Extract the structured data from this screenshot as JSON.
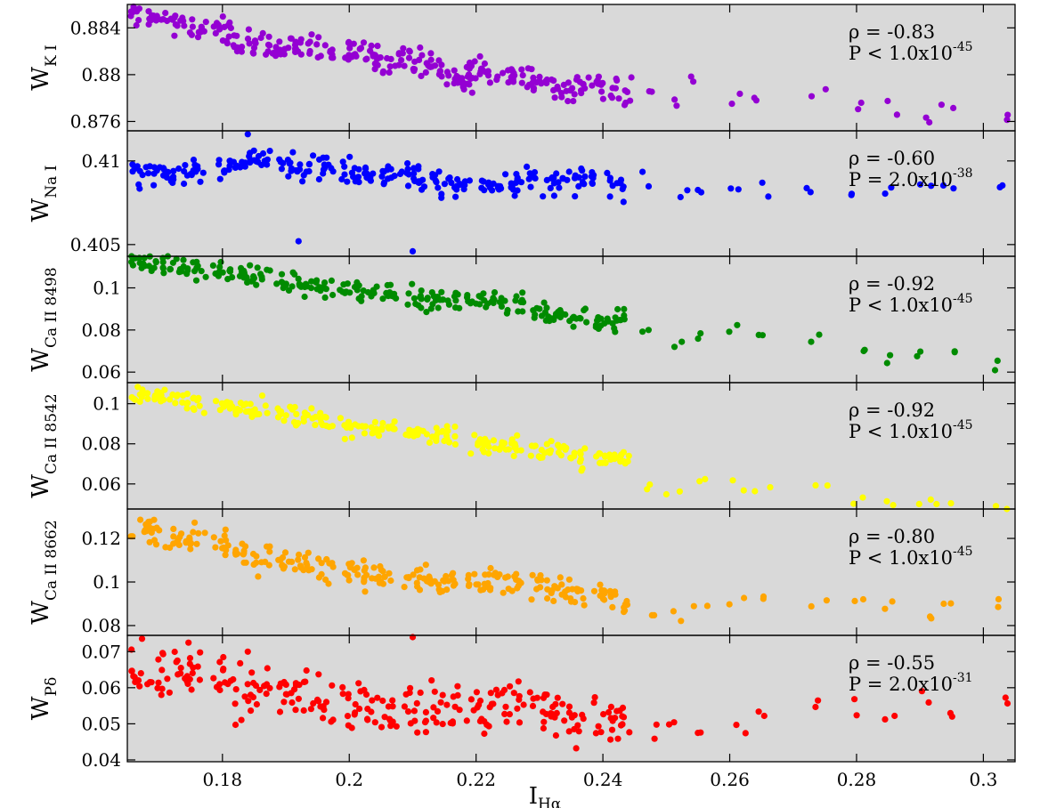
{
  "chart_data": {
    "type": "scatter",
    "xlabel": {
      "main": "I",
      "sub": "Hα"
    },
    "xlim": [
      0.165,
      0.305
    ],
    "xticks": [
      0.18,
      0.2,
      0.22,
      0.24,
      0.26,
      0.28,
      0.3
    ],
    "xtick_labels": [
      "0.18",
      "0.2",
      "0.22",
      "0.24",
      "0.26",
      "0.28",
      "0.3"
    ],
    "grid": false,
    "panels": [
      {
        "ylabel": {
          "main": "W",
          "sub": "K I"
        },
        "color": "#9400d3",
        "ylim": [
          0.8752,
          0.886
        ],
        "yticks": [
          0.876,
          0.88,
          0.884
        ],
        "ytick_labels": [
          "0.876",
          "0.88",
          "0.884"
        ],
        "rho": "ρ = -0.83",
        "p_main": "P < 1.0x10",
        "p_exp": "-45",
        "anchors": [
          [
            0.167,
            0.8849
          ],
          [
            0.17,
            0.8845
          ],
          [
            0.173,
            0.8845
          ],
          [
            0.176,
            0.8841
          ],
          [
            0.18,
            0.884
          ],
          [
            0.182,
            0.8827
          ],
          [
            0.185,
            0.8826
          ],
          [
            0.188,
            0.8823
          ],
          [
            0.19,
            0.8822
          ],
          [
            0.193,
            0.8821
          ],
          [
            0.196,
            0.8819
          ],
          [
            0.2,
            0.882
          ],
          [
            0.203,
            0.8818
          ],
          [
            0.205,
            0.881
          ],
          [
            0.208,
            0.8812
          ],
          [
            0.211,
            0.8812
          ],
          [
            0.213,
            0.8808
          ],
          [
            0.216,
            0.8803
          ],
          [
            0.218,
            0.8795
          ],
          [
            0.22,
            0.8803
          ],
          [
            0.222,
            0.8802
          ],
          [
            0.225,
            0.88
          ],
          [
            0.228,
            0.8797
          ],
          [
            0.231,
            0.8793
          ],
          [
            0.234,
            0.8788
          ],
          [
            0.237,
            0.879
          ],
          [
            0.24,
            0.8788
          ],
          [
            0.243,
            0.8785
          ],
          [
            0.247,
            0.8785
          ],
          [
            0.251,
            0.8778
          ],
          [
            0.255,
            0.8794
          ],
          [
            0.261,
            0.8782
          ],
          [
            0.265,
            0.8778
          ],
          [
            0.274,
            0.8784
          ],
          [
            0.28,
            0.877
          ],
          [
            0.285,
            0.8768
          ],
          [
            0.291,
            0.8763
          ],
          [
            0.294,
            0.8773
          ],
          [
            0.303,
            0.8765
          ]
        ],
        "spread": 0.0006,
        "outliers": [],
        "points": []
      },
      {
        "ylabel": {
          "main": "W",
          "sub": "Na I"
        },
        "color": "#0000ff",
        "ylim": [
          0.4043,
          0.4118
        ],
        "yticks": [
          0.405,
          0.41
        ],
        "ytick_labels": [
          "0.405",
          "0.41"
        ],
        "rho": "ρ = -0.60",
        "p_main": "P = 2.0x10",
        "p_exp": "-38",
        "anchors": [
          [
            0.167,
            0.4093
          ],
          [
            0.17,
            0.4096
          ],
          [
            0.173,
            0.4093
          ],
          [
            0.176,
            0.4095
          ],
          [
            0.18,
            0.4094
          ],
          [
            0.183,
            0.41
          ],
          [
            0.186,
            0.4101
          ],
          [
            0.19,
            0.4098
          ],
          [
            0.193,
            0.4097
          ],
          [
            0.196,
            0.4096
          ],
          [
            0.2,
            0.4093
          ],
          [
            0.203,
            0.4091
          ],
          [
            0.206,
            0.4092
          ],
          [
            0.209,
            0.4091
          ],
          [
            0.212,
            0.4089
          ],
          [
            0.215,
            0.4087
          ],
          [
            0.218,
            0.4085
          ],
          [
            0.222,
            0.4087
          ],
          [
            0.225,
            0.4088
          ],
          [
            0.228,
            0.4089
          ],
          [
            0.232,
            0.4087
          ],
          [
            0.235,
            0.4089
          ],
          [
            0.238,
            0.4089
          ],
          [
            0.242,
            0.4086
          ],
          [
            0.246,
            0.4088
          ],
          [
            0.252,
            0.4083
          ],
          [
            0.256,
            0.4082
          ],
          [
            0.26,
            0.4083
          ],
          [
            0.265,
            0.4083
          ],
          [
            0.273,
            0.4084
          ],
          [
            0.28,
            0.4081
          ],
          [
            0.285,
            0.4083
          ],
          [
            0.291,
            0.4086
          ],
          [
            0.294,
            0.4085
          ],
          [
            0.303,
            0.4086
          ]
        ],
        "spread": 0.0004,
        "outliers": [
          [
            0.184,
            0.4116
          ],
          [
            0.192,
            0.4052
          ],
          [
            0.21,
            0.4046
          ]
        ],
        "points": []
      },
      {
        "ylabel": {
          "main": "W",
          "sub": "Ca II 8498"
        },
        "color": "#008b00",
        "ylim": [
          0.055,
          0.115
        ],
        "yticks": [
          0.06,
          0.08,
          0.1
        ],
        "ytick_labels": [
          "0.06",
          "0.08",
          "0.1"
        ],
        "rho": "ρ = -0.92",
        "p_main": "P < 1.0x10",
        "p_exp": "-45",
        "anchors": [
          [
            0.167,
            0.112
          ],
          [
            0.17,
            0.111
          ],
          [
            0.173,
            0.11
          ],
          [
            0.176,
            0.11
          ],
          [
            0.18,
            0.108
          ],
          [
            0.183,
            0.106
          ],
          [
            0.186,
            0.105
          ],
          [
            0.19,
            0.103
          ],
          [
            0.193,
            0.101
          ],
          [
            0.196,
            0.1
          ],
          [
            0.2,
            0.099
          ],
          [
            0.203,
            0.098
          ],
          [
            0.206,
            0.097
          ],
          [
            0.21,
            0.095
          ],
          [
            0.213,
            0.095
          ],
          [
            0.216,
            0.094
          ],
          [
            0.22,
            0.094
          ],
          [
            0.223,
            0.093
          ],
          [
            0.226,
            0.092
          ],
          [
            0.23,
            0.089
          ],
          [
            0.233,
            0.088
          ],
          [
            0.236,
            0.085
          ],
          [
            0.24,
            0.084
          ],
          [
            0.243,
            0.084
          ],
          [
            0.247,
            0.08
          ],
          [
            0.251,
            0.074
          ],
          [
            0.255,
            0.077
          ],
          [
            0.261,
            0.079
          ],
          [
            0.265,
            0.079
          ],
          [
            0.274,
            0.076
          ],
          [
            0.28,
            0.068
          ],
          [
            0.285,
            0.066
          ],
          [
            0.291,
            0.069
          ],
          [
            0.294,
            0.069
          ],
          [
            0.303,
            0.063
          ]
        ],
        "spread": 0.0025,
        "outliers": [],
        "points": []
      },
      {
        "ylabel": {
          "main": "W",
          "sub": "Ca II 8542"
        },
        "color": "#ffff00",
        "ylim": [
          0.0475,
          0.1105
        ],
        "yticks": [
          0.06,
          0.08,
          0.1
        ],
        "ytick_labels": [
          "0.06",
          "0.08",
          "0.1"
        ],
        "rho": "ρ = -0.92",
        "p_main": "P < 1.0x10",
        "p_exp": "-45",
        "anchors": [
          [
            0.167,
            0.104
          ],
          [
            0.17,
            0.103
          ],
          [
            0.173,
            0.102
          ],
          [
            0.176,
            0.101
          ],
          [
            0.18,
            0.1
          ],
          [
            0.183,
            0.098
          ],
          [
            0.186,
            0.097
          ],
          [
            0.19,
            0.095
          ],
          [
            0.193,
            0.093
          ],
          [
            0.196,
            0.091
          ],
          [
            0.2,
            0.089
          ],
          [
            0.203,
            0.088
          ],
          [
            0.206,
            0.087
          ],
          [
            0.21,
            0.085
          ],
          [
            0.213,
            0.084
          ],
          [
            0.216,
            0.083
          ],
          [
            0.22,
            0.081
          ],
          [
            0.223,
            0.08
          ],
          [
            0.226,
            0.079
          ],
          [
            0.23,
            0.077
          ],
          [
            0.233,
            0.076
          ],
          [
            0.236,
            0.073
          ],
          [
            0.24,
            0.073
          ],
          [
            0.243,
            0.072
          ],
          [
            0.247,
            0.06
          ],
          [
            0.251,
            0.056
          ],
          [
            0.255,
            0.062
          ],
          [
            0.261,
            0.061
          ],
          [
            0.265,
            0.06
          ],
          [
            0.274,
            0.06
          ],
          [
            0.28,
            0.051
          ],
          [
            0.285,
            0.05
          ],
          [
            0.291,
            0.05
          ],
          [
            0.294,
            0.051
          ],
          [
            0.303,
            0.049
          ]
        ],
        "spread": 0.0025,
        "outliers": [],
        "points": []
      },
      {
        "ylabel": {
          "main": "W",
          "sub": "Ca II 8662"
        },
        "color": "#ffa500",
        "ylim": [
          0.0755,
          0.1335
        ],
        "yticks": [
          0.08,
          0.1,
          0.12
        ],
        "ytick_labels": [
          "0.08",
          "0.1",
          "0.12"
        ],
        "rho": "ρ = -0.80",
        "p_main": "P < 1.0x10",
        "p_exp": "-45",
        "anchors": [
          [
            0.167,
            0.125
          ],
          [
            0.17,
            0.122
          ],
          [
            0.173,
            0.12
          ],
          [
            0.176,
            0.119
          ],
          [
            0.18,
            0.117
          ],
          [
            0.183,
            0.112
          ],
          [
            0.186,
            0.111
          ],
          [
            0.19,
            0.11
          ],
          [
            0.193,
            0.109
          ],
          [
            0.196,
            0.107
          ],
          [
            0.2,
            0.105
          ],
          [
            0.203,
            0.104
          ],
          [
            0.206,
            0.103
          ],
          [
            0.21,
            0.102
          ],
          [
            0.213,
            0.101
          ],
          [
            0.216,
            0.1
          ],
          [
            0.22,
            0.1
          ],
          [
            0.223,
            0.101
          ],
          [
            0.226,
            0.1
          ],
          [
            0.23,
            0.099
          ],
          [
            0.233,
            0.097
          ],
          [
            0.236,
            0.096
          ],
          [
            0.24,
            0.094
          ],
          [
            0.243,
            0.092
          ],
          [
            0.247,
            0.086
          ],
          [
            0.251,
            0.084
          ],
          [
            0.255,
            0.088
          ],
          [
            0.261,
            0.09
          ],
          [
            0.265,
            0.092
          ],
          [
            0.274,
            0.089
          ],
          [
            0.28,
            0.089
          ],
          [
            0.285,
            0.088
          ],
          [
            0.291,
            0.085
          ],
          [
            0.294,
            0.09
          ],
          [
            0.303,
            0.087
          ]
        ],
        "spread": 0.003,
        "outliers": [],
        "points": []
      },
      {
        "ylabel": {
          "main": "W",
          "sub": "Pδ"
        },
        "color": "#ff0000",
        "ylim": [
          0.0395,
          0.0745
        ],
        "yticks": [
          0.04,
          0.05,
          0.06,
          0.07
        ],
        "ytick_labels": [
          "0.04",
          "0.05",
          "0.06",
          "0.07"
        ],
        "rho": "ρ = -0.55",
        "p_main": "P = 2.0x10",
        "p_exp": "-31",
        "anchors": [
          [
            0.167,
            0.064
          ],
          [
            0.17,
            0.063
          ],
          [
            0.173,
            0.064
          ],
          [
            0.176,
            0.064
          ],
          [
            0.18,
            0.063
          ],
          [
            0.183,
            0.06
          ],
          [
            0.186,
            0.059
          ],
          [
            0.19,
            0.058
          ],
          [
            0.193,
            0.058
          ],
          [
            0.196,
            0.054
          ],
          [
            0.2,
            0.055
          ],
          [
            0.203,
            0.055
          ],
          [
            0.206,
            0.053
          ],
          [
            0.21,
            0.055
          ],
          [
            0.213,
            0.054
          ],
          [
            0.216,
            0.053
          ],
          [
            0.22,
            0.053
          ],
          [
            0.223,
            0.054
          ],
          [
            0.226,
            0.055
          ],
          [
            0.23,
            0.054
          ],
          [
            0.233,
            0.053
          ],
          [
            0.236,
            0.051
          ],
          [
            0.24,
            0.053
          ],
          [
            0.243,
            0.052
          ],
          [
            0.247,
            0.049
          ],
          [
            0.251,
            0.048
          ],
          [
            0.255,
            0.05
          ],
          [
            0.261,
            0.051
          ],
          [
            0.265,
            0.054
          ],
          [
            0.274,
            0.055
          ],
          [
            0.28,
            0.052
          ],
          [
            0.285,
            0.051
          ],
          [
            0.291,
            0.055
          ],
          [
            0.294,
            0.054
          ],
          [
            0.303,
            0.055
          ]
        ],
        "spread": 0.0035,
        "outliers": [
          [
            0.184,
            0.07
          ],
          [
            0.21,
            0.074
          ]
        ],
        "points": []
      }
    ]
  }
}
